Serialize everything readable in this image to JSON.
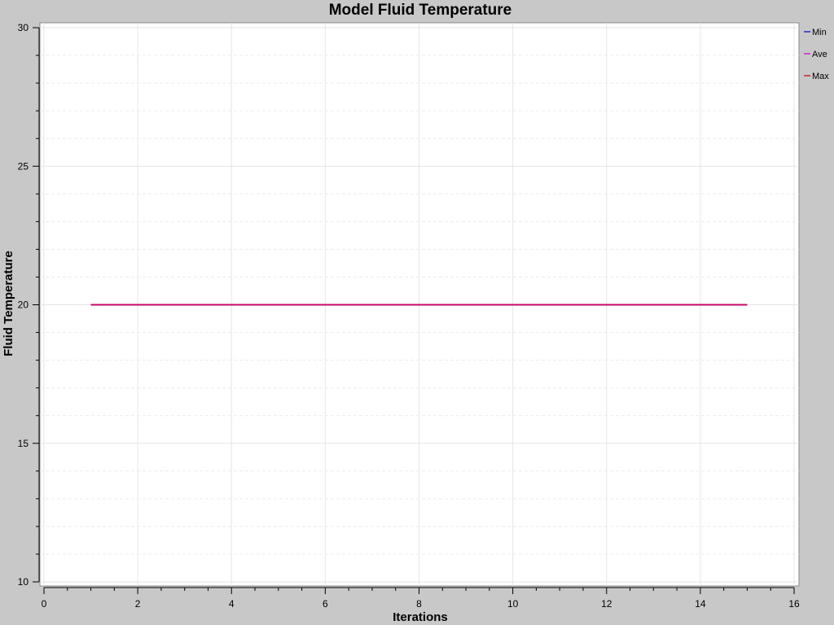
{
  "chart_data": {
    "type": "line",
    "title": "Model Fluid Temperature",
    "xlabel": "Iterations",
    "ylabel": "Fluid Temperature",
    "xlim": [
      0,
      16
    ],
    "ylim": [
      10,
      30
    ],
    "x_ticks": [
      0,
      2,
      4,
      6,
      8,
      10,
      12,
      14,
      16
    ],
    "y_ticks": [
      10,
      15,
      20,
      25,
      30
    ],
    "grid": true,
    "legend_position": "top-right",
    "x": [
      1,
      2,
      3,
      4,
      5,
      6,
      7,
      8,
      9,
      10,
      11,
      12,
      13,
      14,
      15
    ],
    "series": [
      {
        "name": "Min",
        "color": "#0000cc",
        "values": [
          20,
          20,
          20,
          20,
          20,
          20,
          20,
          20,
          20,
          20,
          20,
          20,
          20,
          20,
          20
        ]
      },
      {
        "name": "Ave",
        "color": "#cc00cc",
        "values": [
          20,
          20,
          20,
          20,
          20,
          20,
          20,
          20,
          20,
          20,
          20,
          20,
          20,
          20,
          20
        ]
      },
      {
        "name": "Max",
        "color": "#cc0000",
        "values": [
          20,
          20,
          20,
          20,
          20,
          20,
          20,
          20,
          20,
          20,
          20,
          20,
          20,
          20,
          20
        ]
      }
    ]
  }
}
